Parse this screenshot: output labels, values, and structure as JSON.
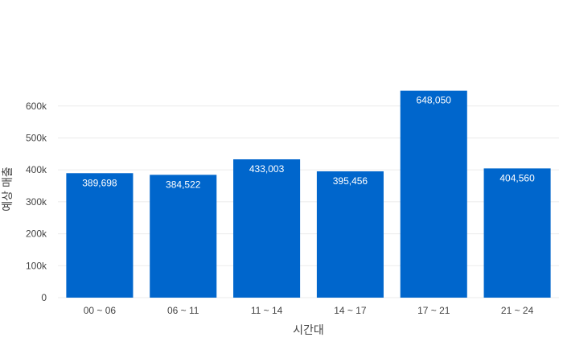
{
  "chart_data": {
    "type": "bar",
    "categories": [
      "00 ~ 06",
      "06 ~ 11",
      "11 ~ 14",
      "14 ~ 17",
      "17 ~ 21",
      "21 ~ 24"
    ],
    "values": [
      389698,
      384522,
      433003,
      395456,
      648050,
      404560
    ],
    "data_labels": [
      "389,698",
      "384,522",
      "433,003",
      "395,456",
      "648,050",
      "404,560"
    ],
    "title": "",
    "xlabel": "시간대",
    "ylabel": "예상 매출",
    "ylim": [
      0,
      680000
    ],
    "yticks": [
      0,
      100000,
      200000,
      300000,
      400000,
      500000,
      600000
    ],
    "ytick_labels": [
      "0",
      "100k",
      "200k",
      "300k",
      "400k",
      "500k",
      "600k"
    ],
    "grid": true,
    "bar_color": "#0066CC",
    "label_color": "#FFFFFF"
  }
}
